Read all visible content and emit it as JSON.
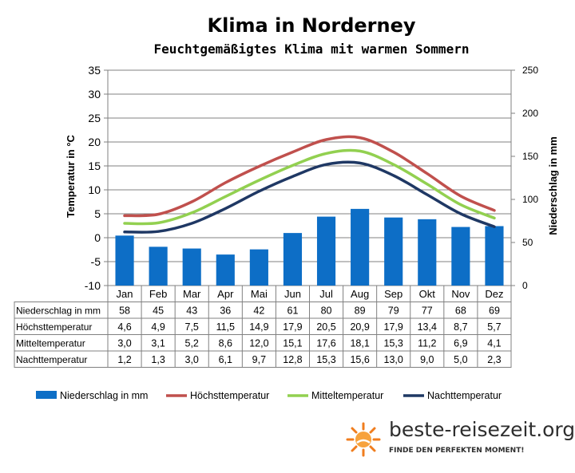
{
  "title": "Klima in Norderney",
  "subtitle": "Feuchtgemäßigtes Klima mit warmen Sommern",
  "brand": {
    "name": "beste-reisezeit.org",
    "slogan": "FINDE DEN PERFEKTEN MOMENT!",
    "logo": "sun-logo-icon"
  },
  "colors": {
    "precip": "#0d6ec6",
    "high": "#c0504d",
    "mean": "#92d050",
    "low": "#1f3864",
    "grid": "#808080"
  },
  "chart_data": {
    "type": "bar+line",
    "categories": [
      "Jan",
      "Feb",
      "Mar",
      "Apr",
      "Mai",
      "Jun",
      "Jul",
      "Aug",
      "Sep",
      "Okt",
      "Nov",
      "Dez"
    ],
    "y_left": {
      "label": "Temperatur in °C",
      "min": -10,
      "max": 35,
      "ticks": [
        "35",
        "30",
        "25",
        "20",
        "15",
        "10",
        "5",
        "0",
        "-5",
        "-10"
      ]
    },
    "y_right": {
      "label": "Niederschlag in mm",
      "min": 0,
      "max": 250,
      "ticks": [
        "250",
        "200",
        "150",
        "100",
        "50",
        "0"
      ]
    },
    "grid": true,
    "legend_position": "bottom",
    "series": [
      {
        "name": "Niederschlag in mm",
        "kind": "bar",
        "axis": "right",
        "values": [
          58,
          45,
          43,
          36,
          42,
          61,
          80,
          89,
          79,
          77,
          68,
          69
        ],
        "labels": [
          "58",
          "45",
          "43",
          "36",
          "42",
          "61",
          "80",
          "89",
          "79",
          "77",
          "68",
          "69"
        ]
      },
      {
        "name": "Höchsttemperatur",
        "kind": "line",
        "axis": "left",
        "values": [
          4.6,
          4.9,
          7.5,
          11.5,
          14.9,
          17.9,
          20.5,
          20.9,
          17.9,
          13.4,
          8.7,
          5.7
        ],
        "labels": [
          "4,6",
          "4,9",
          "7,5",
          "11,5",
          "14,9",
          "17,9",
          "20,5",
          "20,9",
          "17,9",
          "13,4",
          "8,7",
          "5,7"
        ]
      },
      {
        "name": "Mitteltemperatur",
        "kind": "line",
        "axis": "left",
        "values": [
          3.0,
          3.1,
          5.2,
          8.6,
          12.0,
          15.1,
          17.6,
          18.1,
          15.3,
          11.2,
          6.9,
          4.1
        ],
        "labels": [
          "3,0",
          "3,1",
          "5,2",
          "8,6",
          "12,0",
          "15,1",
          "17,6",
          "18,1",
          "15,3",
          "11,2",
          "6,9",
          "4,1"
        ]
      },
      {
        "name": "Nachttemperatur",
        "kind": "line",
        "axis": "left",
        "values": [
          1.2,
          1.3,
          3.0,
          6.1,
          9.7,
          12.8,
          15.3,
          15.6,
          13.0,
          9.0,
          5.0,
          2.3
        ],
        "labels": [
          "1,2",
          "1,3",
          "3,0",
          "6,1",
          "9,7",
          "12,8",
          "15,3",
          "15,6",
          "13,0",
          "9,0",
          "5,0",
          "2,3"
        ]
      }
    ]
  }
}
